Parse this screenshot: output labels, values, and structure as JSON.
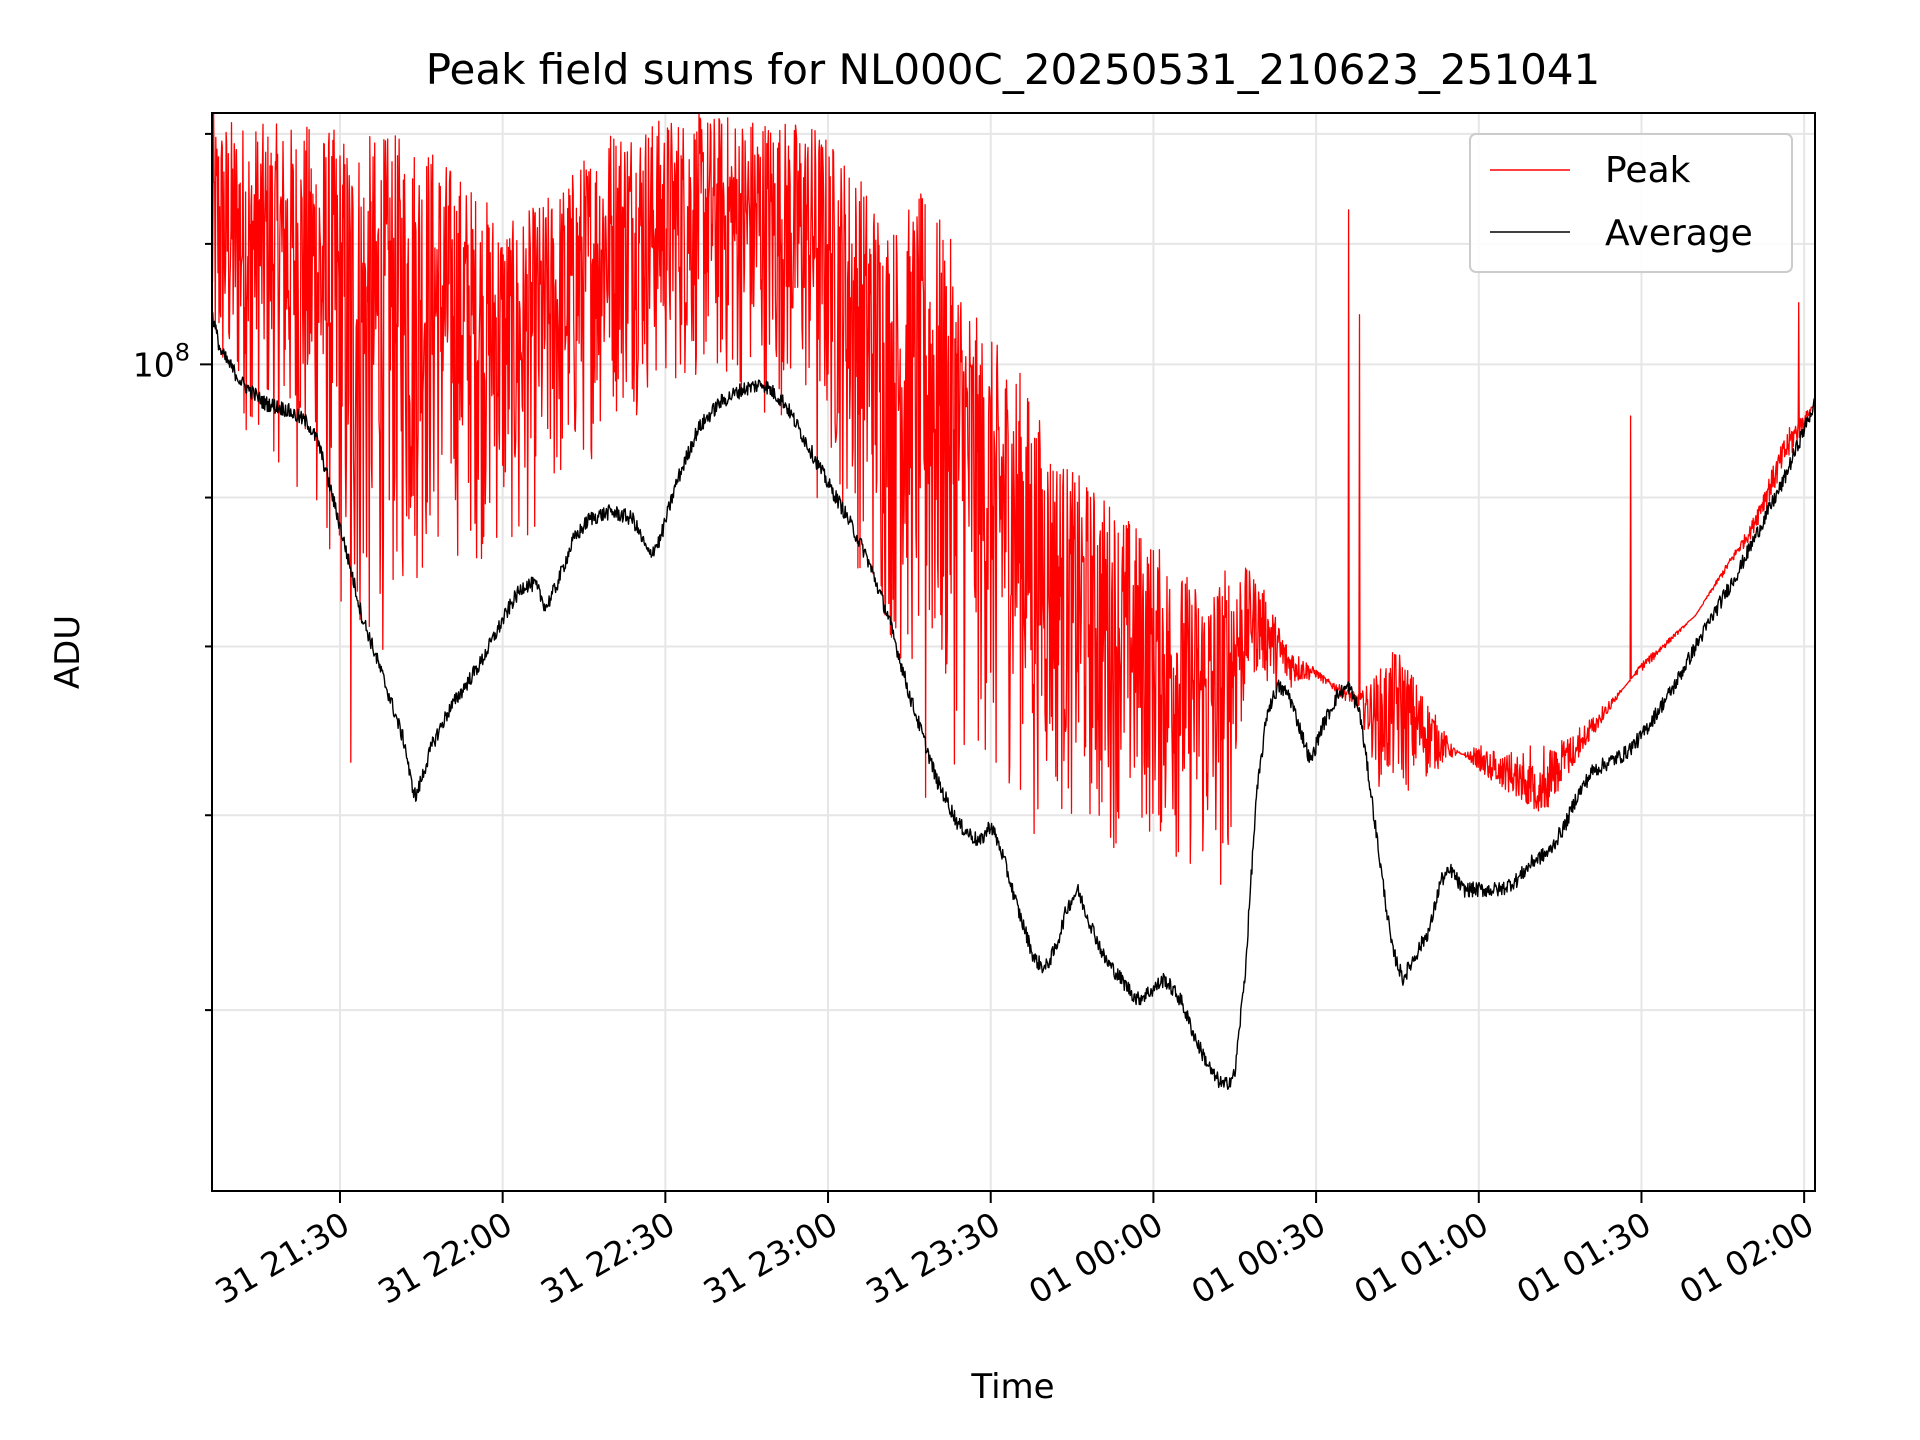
{
  "chart_data": {
    "type": "line",
    "title": "Peak field sums for NL000C_20250531_210623_251041",
    "xlabel": "Time",
    "ylabel": "ADU",
    "y_scale": "log",
    "y_tick_label": "10^8",
    "grid": true,
    "legend_position": "top-right",
    "xlim_minutes_from_2100": [
      6.4,
      302
    ],
    "ylim": [
      52000000,
      122000000
    ],
    "x_ticks": [
      {
        "label": "31 21:30",
        "minutes": 30
      },
      {
        "label": "31 22:00",
        "minutes": 60
      },
      {
        "label": "31 22:30",
        "minutes": 90
      },
      {
        "label": "31 23:00",
        "minutes": 120
      },
      {
        "label": "31 23:30",
        "minutes": 150
      },
      {
        "label": "01 00:00",
        "minutes": 180
      },
      {
        "label": "01 00:30",
        "minutes": 210
      },
      {
        "label": "01 01:00",
        "minutes": 240
      },
      {
        "label": "01 01:30",
        "minutes": 270
      },
      {
        "label": "01 02:00",
        "minutes": 300
      }
    ],
    "series": [
      {
        "name": "Peak",
        "color": "#ff0000",
        "envelope_high": [
          [
            6.4,
            122
          ],
          [
            15,
            121
          ],
          [
            25,
            121
          ],
          [
            35,
            120
          ],
          [
            45,
            120
          ],
          [
            55,
            115
          ],
          [
            62,
            112
          ],
          [
            70,
            115
          ],
          [
            80,
            121
          ],
          [
            95,
            122
          ],
          [
            108,
            122
          ],
          [
            118,
            121
          ],
          [
            125,
            117
          ],
          [
            132,
            112
          ],
          [
            138,
            115
          ],
          [
            143,
            110
          ],
          [
            148,
            103
          ],
          [
            155,
            100
          ],
          [
            160,
            95
          ],
          [
            165,
            92
          ],
          [
            172,
            90
          ],
          [
            180,
            87
          ],
          [
            185,
            85
          ],
          [
            190,
            84
          ],
          [
            195,
            86
          ],
          [
            200,
            84
          ],
          [
            205,
            80
          ],
          [
            212,
            78
          ],
          [
            218,
            77
          ],
          [
            225,
            80
          ],
          [
            235,
            74
          ],
          [
            242,
            72
          ],
          [
            252,
            70
          ],
          [
            262,
            75
          ],
          [
            270,
            79
          ],
          [
            280,
            82
          ],
          [
            290,
            88
          ],
          [
            297,
            95
          ],
          [
            302,
            97
          ]
        ],
        "envelope_low": [
          [
            6.4,
            95
          ],
          [
            15,
            94
          ],
          [
            25,
            88
          ],
          [
            30,
            80
          ],
          [
            35,
            76
          ],
          [
            40,
            81
          ],
          [
            50,
            85
          ],
          [
            60,
            85
          ],
          [
            70,
            88
          ],
          [
            80,
            95
          ],
          [
            95,
            98
          ],
          [
            108,
            96
          ],
          [
            118,
            95
          ],
          [
            125,
            85
          ],
          [
            130,
            80
          ],
          [
            138,
            74
          ],
          [
            145,
            72
          ],
          [
            150,
            72
          ],
          [
            158,
            70
          ],
          [
            165,
            69
          ],
          [
            172,
            68
          ],
          [
            180,
            68
          ],
          [
            188,
            66
          ],
          [
            193,
            65
          ],
          [
            198,
            78
          ],
          [
            203,
            77
          ],
          [
            210,
            78
          ],
          [
            218,
            76
          ],
          [
            222,
            71
          ],
          [
            228,
            71
          ],
          [
            234,
            73
          ],
          [
            240,
            74
          ],
          [
            250,
            74
          ],
          [
            258,
            75
          ],
          [
            265,
            77
          ],
          [
            272,
            79
          ],
          [
            280,
            82
          ],
          [
            290,
            87
          ],
          [
            297,
            92
          ],
          [
            302,
            97
          ]
        ],
        "spikes": [
          [
            13.5,
            96
          ],
          [
            32,
            73
          ],
          [
            63,
            88
          ],
          [
            118,
            90
          ],
          [
            138,
            71
          ],
          [
            151,
            73
          ],
          [
            158,
            69
          ],
          [
            170,
            70
          ],
          [
            186,
            75
          ],
          [
            216,
            113
          ],
          [
            218,
            104
          ],
          [
            268,
            96
          ],
          [
            299,
            105
          ]
        ]
      },
      {
        "name": "Average",
        "color": "#000000",
        "points": [
          [
            6.4,
            104
          ],
          [
            8,
            101
          ],
          [
            12,
            98.5
          ],
          [
            16,
            97
          ],
          [
            20,
            96.5
          ],
          [
            24,
            95.5
          ],
          [
            26,
            94
          ],
          [
            28,
            91
          ],
          [
            30,
            88
          ],
          [
            32,
            85
          ],
          [
            34,
            82
          ],
          [
            36,
            80
          ],
          [
            38,
            78
          ],
          [
            40,
            76
          ],
          [
            42,
            74
          ],
          [
            43,
            72
          ],
          [
            44,
            71
          ],
          [
            45,
            72
          ],
          [
            47,
            74
          ],
          [
            50,
            76
          ],
          [
            53,
            77.5
          ],
          [
            56,
            79
          ],
          [
            59,
            81
          ],
          [
            62,
            83
          ],
          [
            64,
            84
          ],
          [
            66,
            84
          ],
          [
            68,
            82.5
          ],
          [
            70,
            84
          ],
          [
            73,
            87
          ],
          [
            76,
            88.5
          ],
          [
            80,
            89
          ],
          [
            84,
            88.5
          ],
          [
            87,
            86
          ],
          [
            89,
            87
          ],
          [
            92,
            91
          ],
          [
            96,
            95
          ],
          [
            100,
            97
          ],
          [
            104,
            98
          ],
          [
            108,
            98.5
          ],
          [
            112,
            97
          ],
          [
            116,
            94
          ],
          [
            120,
            91
          ],
          [
            123,
            89
          ],
          [
            127,
            86
          ],
          [
            131,
            82
          ],
          [
            135,
            77
          ],
          [
            140,
            72
          ],
          [
            144,
            69.5
          ],
          [
            148,
            68.5
          ],
          [
            150,
            69.5
          ],
          [
            152,
            68
          ],
          [
            155,
            65
          ],
          [
            158,
            62.5
          ],
          [
            160,
            62
          ],
          [
            162,
            63
          ],
          [
            164,
            65
          ],
          [
            166,
            66
          ],
          [
            168,
            64.5
          ],
          [
            171,
            62.5
          ],
          [
            174,
            61.5
          ],
          [
            177,
            60.5
          ],
          [
            180,
            61
          ],
          [
            182,
            61.5
          ],
          [
            185,
            60.5
          ],
          [
            188,
            58.5
          ],
          [
            191,
            57
          ],
          [
            193,
            56.5
          ],
          [
            195,
            57
          ],
          [
            197,
            62
          ],
          [
            199,
            71
          ],
          [
            201,
            76
          ],
          [
            203,
            77.5
          ],
          [
            205,
            77
          ],
          [
            207,
            75
          ],
          [
            209,
            73
          ],
          [
            211,
            75
          ],
          [
            214,
            77
          ],
          [
            216,
            77.5
          ],
          [
            218,
            76
          ],
          [
            220,
            71.5
          ],
          [
            222,
            67
          ],
          [
            224,
            63
          ],
          [
            226,
            61.5
          ],
          [
            228,
            62.5
          ],
          [
            231,
            64
          ],
          [
            233,
            66.5
          ],
          [
            235,
            67
          ],
          [
            237,
            66
          ],
          [
            240,
            66
          ],
          [
            244,
            66
          ],
          [
            247,
            66.5
          ],
          [
            250,
            67.5
          ],
          [
            253,
            68
          ],
          [
            256,
            69.5
          ],
          [
            258,
            71
          ],
          [
            261,
            72.5
          ],
          [
            264,
            73
          ],
          [
            267,
            73.5
          ],
          [
            270,
            74.5
          ],
          [
            273,
            76
          ],
          [
            276,
            77.5
          ],
          [
            280,
            80
          ],
          [
            284,
            82.5
          ],
          [
            288,
            85
          ],
          [
            292,
            88
          ],
          [
            296,
            91
          ],
          [
            299,
            94
          ],
          [
            302,
            97
          ]
        ]
      }
    ]
  }
}
